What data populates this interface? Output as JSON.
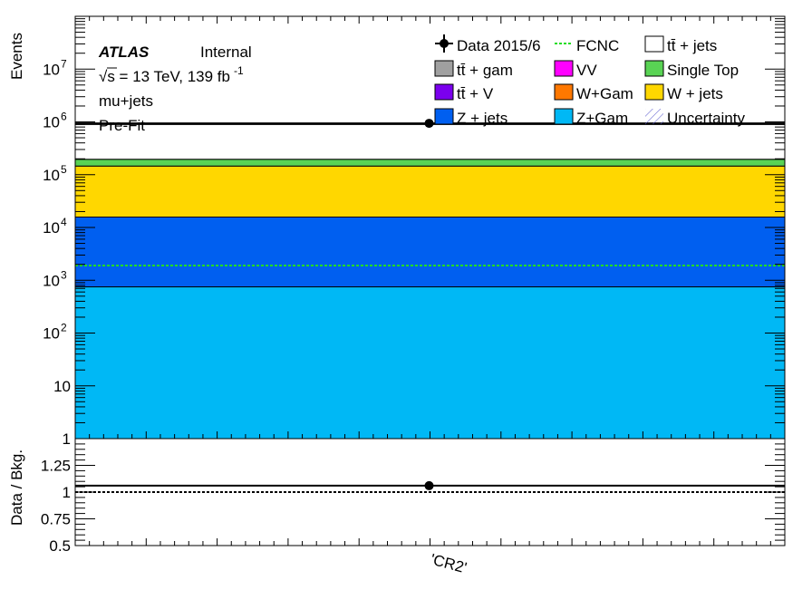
{
  "chart_data": [
    {
      "type": "bar",
      "panel": "main",
      "ylabel": "Events",
      "yscale": "log",
      "ylim": [
        1,
        100000000
      ],
      "y_ticks": [
        {
          "value": 1,
          "label": "1",
          "exp": ""
        },
        {
          "value": 10,
          "label": "10",
          "exp": ""
        },
        {
          "value": 100,
          "label": "10",
          "exp": "2"
        },
        {
          "value": 1000,
          "label": "10",
          "exp": "3"
        },
        {
          "value": 10000,
          "label": "10",
          "exp": "4"
        },
        {
          "value": 100000,
          "label": "10",
          "exp": "5"
        },
        {
          "value": 1000000,
          "label": "10",
          "exp": "6"
        },
        {
          "value": 10000000,
          "label": "10",
          "exp": "7"
        }
      ],
      "categories": [
        "'CR2'"
      ],
      "stack": [
        {
          "name": "Z+Gam",
          "color": "#00b8f5",
          "value": 750
        },
        {
          "name": "Z + jets",
          "color": "#005ff0",
          "value": 15000
        },
        {
          "name": "W + jets",
          "color": "#ffd700",
          "value": 130000
        },
        {
          "name": "Single Top",
          "color": "#59d354",
          "value": 50000
        },
        {
          "name": "tt̄ + jets",
          "color": "#ffffff",
          "value": 700000
        }
      ],
      "signal": {
        "name": "FCNC",
        "color": "#22dd22",
        "value": 1900
      },
      "data_points": [
        {
          "category": "'CR2'",
          "value": 940000
        }
      ]
    },
    {
      "type": "scatter",
      "panel": "ratio",
      "ylabel": "Data / Bkg.",
      "ylim": [
        0.5,
        1.5
      ],
      "y_ticks": [
        {
          "value": 0.5,
          "label": "0.5"
        },
        {
          "value": 0.75,
          "label": "0.75"
        },
        {
          "value": 1,
          "label": "1"
        },
        {
          "value": 1.25,
          "label": "1.25"
        }
      ],
      "reference_line": 1,
      "points": [
        {
          "category": "'CR2'",
          "value": 1.06
        }
      ]
    }
  ],
  "annotations": {
    "atlas": "ATLAS",
    "internal": "Internal",
    "energy": "√s = 13 TeV, 139 fb",
    "energy_exp": "-1",
    "channel": "mu+jets",
    "fit": "Pre-Fit"
  },
  "legend": [
    {
      "label": "Data 2015/6",
      "kind": "data",
      "color": "#000000"
    },
    {
      "label": "FCNC",
      "kind": "dashed",
      "color": "#22dd22"
    },
    {
      "label": "tt̄ + jets",
      "kind": "box",
      "color": "#ffffff"
    },
    {
      "label": "tt̄ +  gam",
      "kind": "box",
      "color": "#a0a0a0"
    },
    {
      "label": "VV",
      "kind": "box",
      "color": "#ff00ff"
    },
    {
      "label": "Single Top",
      "kind": "box",
      "color": "#59d354"
    },
    {
      "label": "tt̄ + V",
      "kind": "box",
      "color": "#7b00ee"
    },
    {
      "label": "W+Gam",
      "kind": "box",
      "color": "#ff7800"
    },
    {
      "label": "W + jets",
      "kind": "box",
      "color": "#ffd700"
    },
    {
      "label": "Z + jets",
      "kind": "box",
      "color": "#005ff0"
    },
    {
      "label": "Z+Gam",
      "kind": "box",
      "color": "#00b8f5"
    },
    {
      "label": "Uncertainty",
      "kind": "hatch",
      "color": "#5555cc"
    }
  ]
}
